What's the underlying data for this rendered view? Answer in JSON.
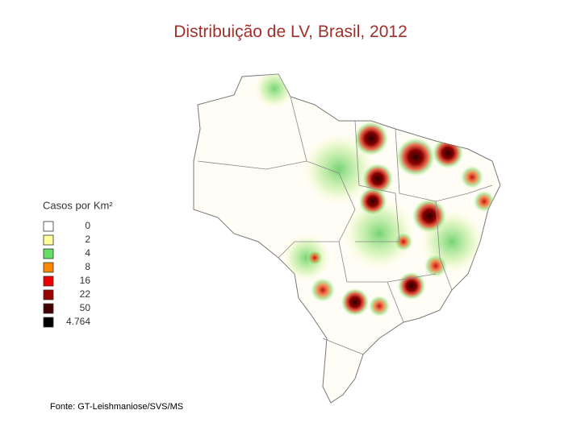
{
  "title": "Distribuição de LV, Brasil, 2012",
  "legend": {
    "title": "Casos por Km²",
    "items": [
      {
        "label": "0",
        "color": "#ffffff"
      },
      {
        "label": "2",
        "color": "#ffff99"
      },
      {
        "label": "4",
        "color": "#66dd66"
      },
      {
        "label": "8",
        "color": "#ff8800"
      },
      {
        "label": "16",
        "color": "#ee0000"
      },
      {
        "label": "22",
        "color": "#990000"
      },
      {
        "label": "50",
        "color": "#440000"
      },
      {
        "label": "4.764",
        "color": "#000000"
      }
    ]
  },
  "source": "Fonte: GT-Leishmaniose/SVS/MS"
}
